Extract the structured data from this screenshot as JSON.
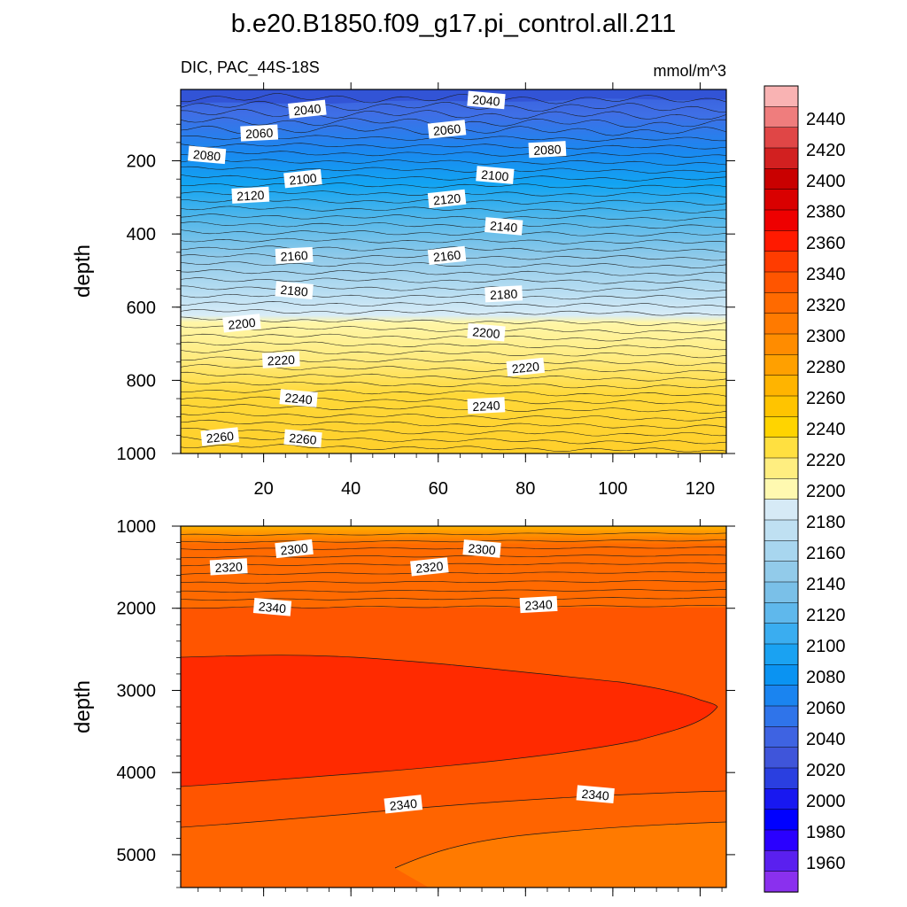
{
  "title": "b.e20.B1850.f09_g17.pi_control.all.211",
  "panel_top": {
    "left_label": "DIC, PAC_44S-18S",
    "right_label": "mmol/m^3",
    "y_label": "depth",
    "x_tick_labels": [
      "20",
      "40",
      "60",
      "80",
      "100",
      "120"
    ],
    "y_tick_labels": [
      "200",
      "400",
      "600",
      "800",
      "1000"
    ]
  },
  "panel_bottom": {
    "y_label": "depth",
    "y_tick_labels": [
      "1000",
      "2000",
      "3000",
      "4000",
      "5000"
    ]
  },
  "colorbar": {
    "labels": [
      "2440",
      "2420",
      "2400",
      "2380",
      "2360",
      "2340",
      "2320",
      "2300",
      "2280",
      "2260",
      "2240",
      "2220",
      "2200",
      "2180",
      "2160",
      "2140",
      "2120",
      "2100",
      "2080",
      "2060",
      "2040",
      "2020",
      "2000",
      "1980",
      "1960"
    ],
    "colors": [
      "#f9b3b3",
      "#ef7d7d",
      "#e04646",
      "#d22020",
      "#c90000",
      "#d90000",
      "#ee0000",
      "#ff1a00",
      "#ff3c00",
      "#ff5500",
      "#ff6a00",
      "#ff7a00",
      "#ff8c00",
      "#ffa000",
      "#ffb400",
      "#ffc400",
      "#ffd400",
      "#ffe040",
      "#ffee80",
      "#fff9b0",
      "#d6eaf6",
      "#bfe0f2",
      "#a8d6ef",
      "#92cbea",
      "#7ac0e8",
      "#5fb8ec",
      "#3aadf0",
      "#1aa2f2",
      "#0a93f2",
      "#1a84f0",
      "#2f74ea",
      "#3e63e2",
      "#3f55da",
      "#2a3fe0",
      "#1818f0",
      "#0000ff",
      "#2a00ff",
      "#5a20ef",
      "#8a30ee"
    ]
  },
  "chart_data": [
    {
      "type": "contour",
      "panel": "top",
      "x": [
        20,
        40,
        60,
        80,
        100,
        120
      ],
      "xlim": [
        1,
        126
      ],
      "ylim": [
        1000,
        5
      ],
      "ylabel": "depth",
      "variable": "DIC",
      "units": "mmol/m^3",
      "contour_labels": [
        {
          "value": 2040,
          "x": 30,
          "depth": 60
        },
        {
          "value": 2040,
          "x": 71,
          "depth": 35
        },
        {
          "value": 2060,
          "x": 19,
          "depth": 125
        },
        {
          "value": 2060,
          "x": 62,
          "depth": 115
        },
        {
          "value": 2080,
          "x": 7,
          "depth": 185
        },
        {
          "value": 2080,
          "x": 85,
          "depth": 170
        },
        {
          "value": 2100,
          "x": 29,
          "depth": 250
        },
        {
          "value": 2100,
          "x": 73,
          "depth": 240
        },
        {
          "value": 2120,
          "x": 17,
          "depth": 295
        },
        {
          "value": 2120,
          "x": 62,
          "depth": 305
        },
        {
          "value": 2140,
          "x": 75,
          "depth": 380
        },
        {
          "value": 2160,
          "x": 27,
          "depth": 460
        },
        {
          "value": 2160,
          "x": 62,
          "depth": 460
        },
        {
          "value": 2180,
          "x": 27,
          "depth": 555
        },
        {
          "value": 2180,
          "x": 75,
          "depth": 565
        },
        {
          "value": 2200,
          "x": 15,
          "depth": 645
        },
        {
          "value": 2200,
          "x": 71,
          "depth": 670
        },
        {
          "value": 2220,
          "x": 24,
          "depth": 745
        },
        {
          "value": 2220,
          "x": 80,
          "depth": 765
        },
        {
          "value": 2240,
          "x": 28,
          "depth": 850
        },
        {
          "value": 2240,
          "x": 71,
          "depth": 870
        },
        {
          "value": 2260,
          "x": 10,
          "depth": 955
        },
        {
          "value": 2260,
          "x": 29,
          "depth": 960
        }
      ]
    },
    {
      "type": "contour",
      "panel": "bottom",
      "xlim": [
        1,
        126
      ],
      "ylim": [
        5000,
        1000
      ],
      "ylabel": "depth",
      "variable": "DIC",
      "units": "mmol/m^3",
      "contour_labels": [
        {
          "value": 2300,
          "x": 27,
          "depth": 1280
        },
        {
          "value": 2300,
          "x": 70,
          "depth": 1280
        },
        {
          "value": 2320,
          "x": 12,
          "depth": 1500
        },
        {
          "value": 2320,
          "x": 58,
          "depth": 1500
        },
        {
          "value": 2340,
          "x": 22,
          "depth": 1990
        },
        {
          "value": 2340,
          "x": 83,
          "depth": 1960
        },
        {
          "value": 2340,
          "x": 52,
          "depth": 4390
        },
        {
          "value": 2340,
          "x": 96,
          "depth": 4270
        }
      ]
    }
  ]
}
